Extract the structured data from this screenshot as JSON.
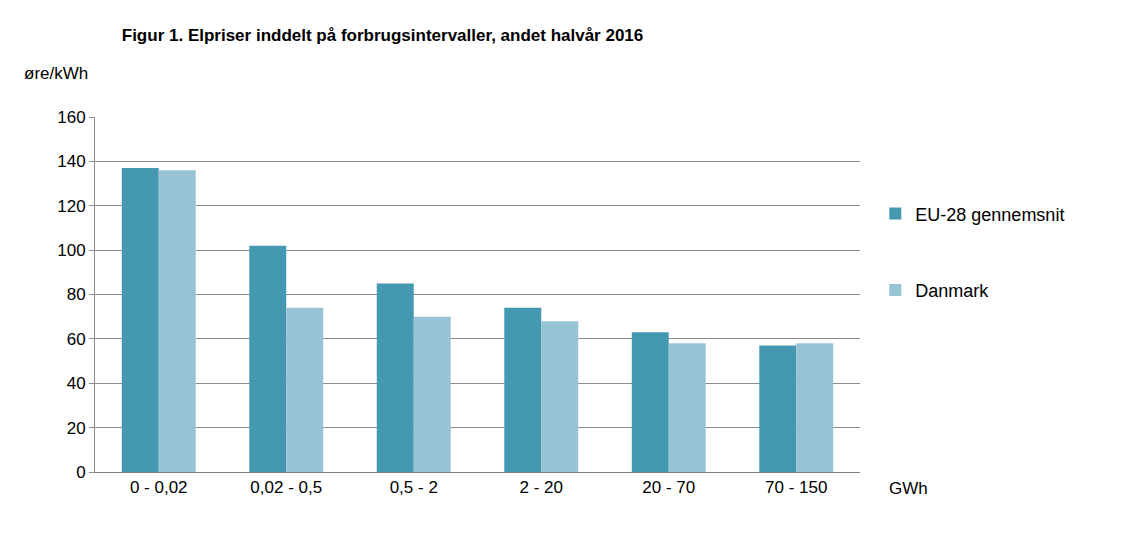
{
  "chart_data": {
    "type": "bar",
    "title": "Figur 1. Elpriser inddelt på forbrugsintervaller, andet halvår 2016",
    "y_label": "øre/kWh",
    "x_label": "GWh",
    "categories": [
      "0 - 0,02",
      "0,02 - 0,5",
      "0,5 - 2",
      "2 - 20",
      "20 - 70",
      "70 - 150"
    ],
    "series": [
      {
        "name": "EU-28 gennemsnit",
        "color": "#4499b1",
        "values": [
          137,
          102,
          85,
          74,
          63,
          57
        ]
      },
      {
        "name": "Danmark",
        "color": "#96c4d5",
        "values": [
          136,
          74,
          70,
          68,
          58,
          58
        ]
      }
    ],
    "ylim": [
      0,
      160
    ],
    "yticks": [
      0,
      20,
      40,
      60,
      80,
      100,
      120,
      140,
      160
    ],
    "grid": true,
    "legend": "right"
  }
}
